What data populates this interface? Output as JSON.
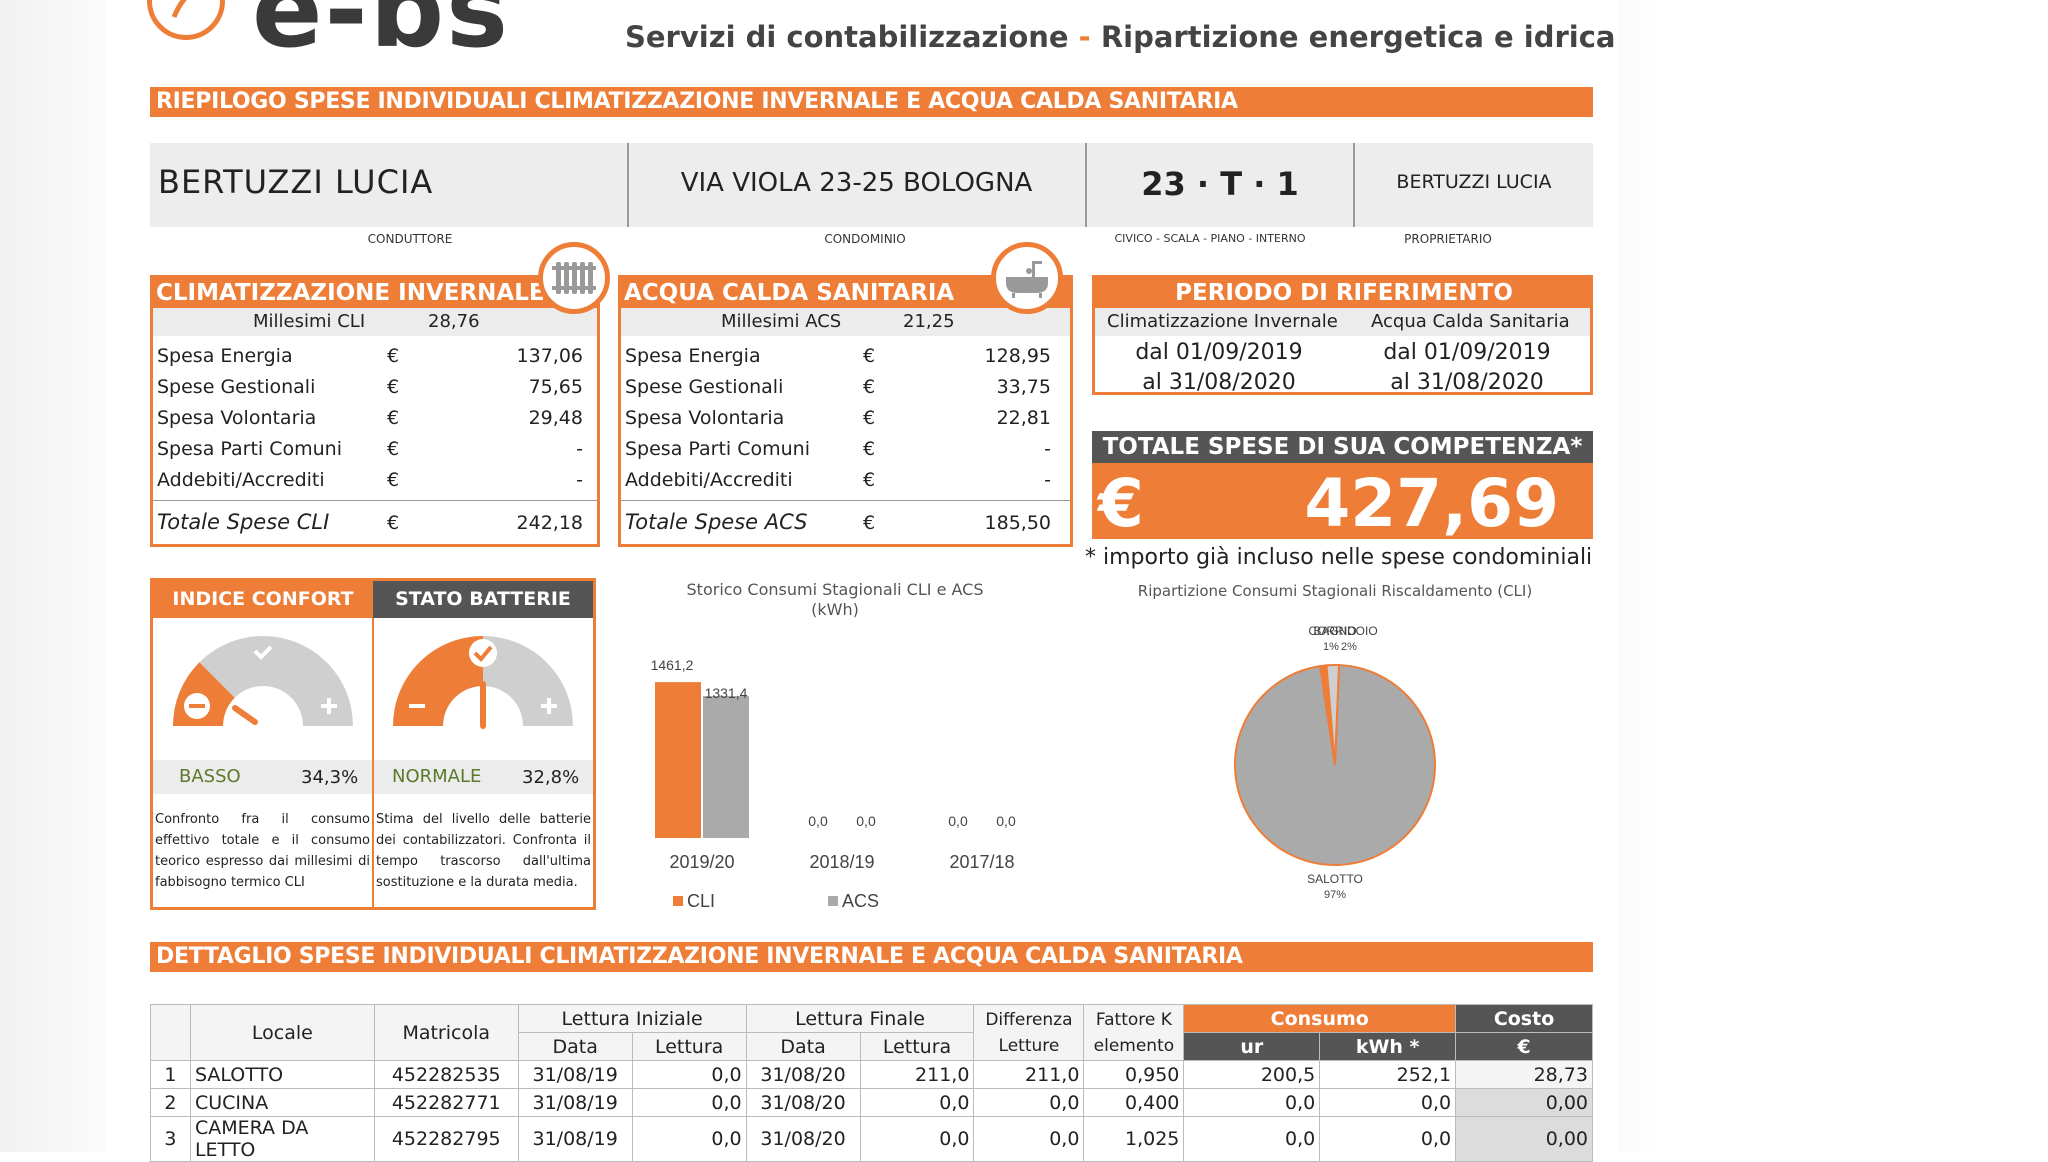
{
  "header": {
    "logo_text": "e-bs",
    "tagline_left": "Servizi di contabilizzazione",
    "tagline_dash": " - ",
    "tagline_right": "Ripartizione energetica e idrica"
  },
  "summary_bar": "RIEPILOGO SPESE INDIVIDUALI CLIMATIZZAZIONE INVERNALE E ACQUA CALDA SANITARIA",
  "info": {
    "conduttore": "BERTUZZI LUCIA",
    "condominio": "VIA VIOLA 23-25 BOLOGNA",
    "civico": "23 · T · 1",
    "proprietario": "BERTUZZI LUCIA",
    "caption_conduttore": "CONDUTTORE",
    "caption_condominio": "CONDOMINIO",
    "caption_civico": "CIVICO - SCALA - PIANO - INTERNO",
    "caption_proprietario": "PROPRIETARIO"
  },
  "cli": {
    "title": "CLIMATIZZAZIONE INVERNALE",
    "millesimi_label": "Millesimi CLI",
    "millesimi_value": "28,76",
    "rows": [
      {
        "label": "Spesa Energia",
        "cur": "€",
        "value": "137,06"
      },
      {
        "label": "Spese Gestionali",
        "cur": "€",
        "value": "75,65"
      },
      {
        "label": "Spesa Volontaria",
        "cur": "€",
        "value": "29,48"
      },
      {
        "label": "Spesa Parti Comuni",
        "cur": "€",
        "value": "-"
      },
      {
        "label": "Addebiti/Accrediti",
        "cur": "€",
        "value": "-"
      }
    ],
    "total_label": "Totale Spese CLI",
    "total_cur": "€",
    "total_value": "242,18"
  },
  "acs": {
    "title": "ACQUA CALDA SANITARIA",
    "millesimi_label": "Millesimi ACS",
    "millesimi_value": "21,25",
    "rows": [
      {
        "label": "Spesa Energia",
        "cur": "€",
        "value": "128,95"
      },
      {
        "label": "Spese Gestionali",
        "cur": "€",
        "value": "33,75"
      },
      {
        "label": "Spesa Volontaria",
        "cur": "€",
        "value": "22,81"
      },
      {
        "label": "Spesa Parti Comuni",
        "cur": "€",
        "value": "-"
      },
      {
        "label": "Addebiti/Accrediti",
        "cur": "€",
        "value": "-"
      }
    ],
    "total_label": "Totale Spese ACS",
    "total_cur": "€",
    "total_value": "185,50"
  },
  "periodo": {
    "title": "PERIODO DI RIFERIMENTO",
    "col1": "Climatizzazione Invernale",
    "col2": "Acqua Calda Sanitaria",
    "cli_from": "dal 01/09/2019",
    "cli_to": "al 31/08/2020",
    "acs_from": "dal 01/09/2019",
    "acs_to": "al 31/08/2020"
  },
  "totale": {
    "title": "TOTALE SPESE DI SUA COMPETENZA*",
    "currency": "€",
    "value": "427,69",
    "note": "* importo già incluso nelle spese condominiali"
  },
  "confort": {
    "title": "INDICE CONFORT",
    "level": "BASSO",
    "percent": "34,3%",
    "gauge_fraction": 0.25,
    "desc": "Confronto fra il consumo effettivo totale e il consumo teorico espresso dai millesimi di fabbisogno termico CLI"
  },
  "batterie": {
    "title": "STATO BATTERIE",
    "level": "NORMALE",
    "percent": "32,8%",
    "gauge_fraction": 0.5,
    "desc": "Stima del livello delle batterie dei contabilizzatori. Confronta il tempo trascorso dall'ultima sostituzione e la durata media."
  },
  "chart_data": [
    {
      "type": "bar",
      "title": "Storico Consumi Stagionali CLI e ACS",
      "subtitle": "(kWh)",
      "categories": [
        "2019/20",
        "2018/19",
        "2017/18"
      ],
      "series": [
        {
          "name": "CLI",
          "color": "#ee7d37",
          "values": [
            1461.2,
            0.0,
            0.0
          ],
          "labels": [
            "1461,2",
            "0,0",
            "0,0"
          ]
        },
        {
          "name": "ACS",
          "color": "#aaaaaa",
          "values": [
            1331.4,
            0.0,
            0.0
          ],
          "labels": [
            "1331,4",
            "0,0",
            "0,0"
          ]
        }
      ],
      "legend_position": "bottom",
      "ylim": [
        0,
        1500
      ]
    },
    {
      "type": "pie",
      "title": "Ripartizione Consumi Stagionali Riscaldamento (CLI)",
      "slices": [
        {
          "label": "SALOTTO",
          "pct_label": "97%",
          "value": 97,
          "color": "#aaaaaa"
        },
        {
          "label": "BAGNO",
          "pct_label": "1%",
          "value": 1,
          "color": "#ee7d37"
        },
        {
          "label": "CORRIDOIO",
          "pct_label": "2%",
          "value": 2,
          "color": "#cfcfcf"
        }
      ]
    }
  ],
  "detail_bar": "DETTAGLIO SPESE INDIVIDUALI CLIMATIZZAZIONE INVERNALE E ACQUA CALDA SANITARIA",
  "detail": {
    "h_locale": "Locale",
    "h_matricola": "Matricola",
    "h_lettura_iniziale": "Lettura Iniziale",
    "h_lettura_finale": "Lettura Finale",
    "h_differenza": "Differenza Letture",
    "h_fattore": "Fattore K elemento",
    "h_consumo": "Consumo",
    "h_costo": "Costo",
    "h_data": "Data",
    "h_lettura": "Lettura",
    "h_ur": "ur",
    "h_kwh": "kWh *",
    "h_eur": "€",
    "rows": [
      {
        "n": "1",
        "locale": "SALOTTO",
        "matricola": "452282535",
        "d1": "31/08/19",
        "l1": "0,0",
        "d2": "31/08/20",
        "l2": "211,0",
        "diff": "211,0",
        "k": "0,950",
        "ur": "200,5",
        "kwh": "252,1",
        "costo": "28,73"
      },
      {
        "n": "2",
        "locale": "CUCINA",
        "matricola": "452282771",
        "d1": "31/08/19",
        "l1": "0,0",
        "d2": "31/08/20",
        "l2": "0,0",
        "diff": "0,0",
        "k": "0,400",
        "ur": "0,0",
        "kwh": "0,0",
        "costo": "0,00"
      },
      {
        "n": "3",
        "locale": "CAMERA DA LETTO",
        "matricola": "452282795",
        "d1": "31/08/19",
        "l1": "0,0",
        "d2": "31/08/20",
        "l2": "0,0",
        "diff": "0,0",
        "k": "1,025",
        "ur": "0,0",
        "kwh": "0,0",
        "costo": "0,00"
      }
    ]
  }
}
